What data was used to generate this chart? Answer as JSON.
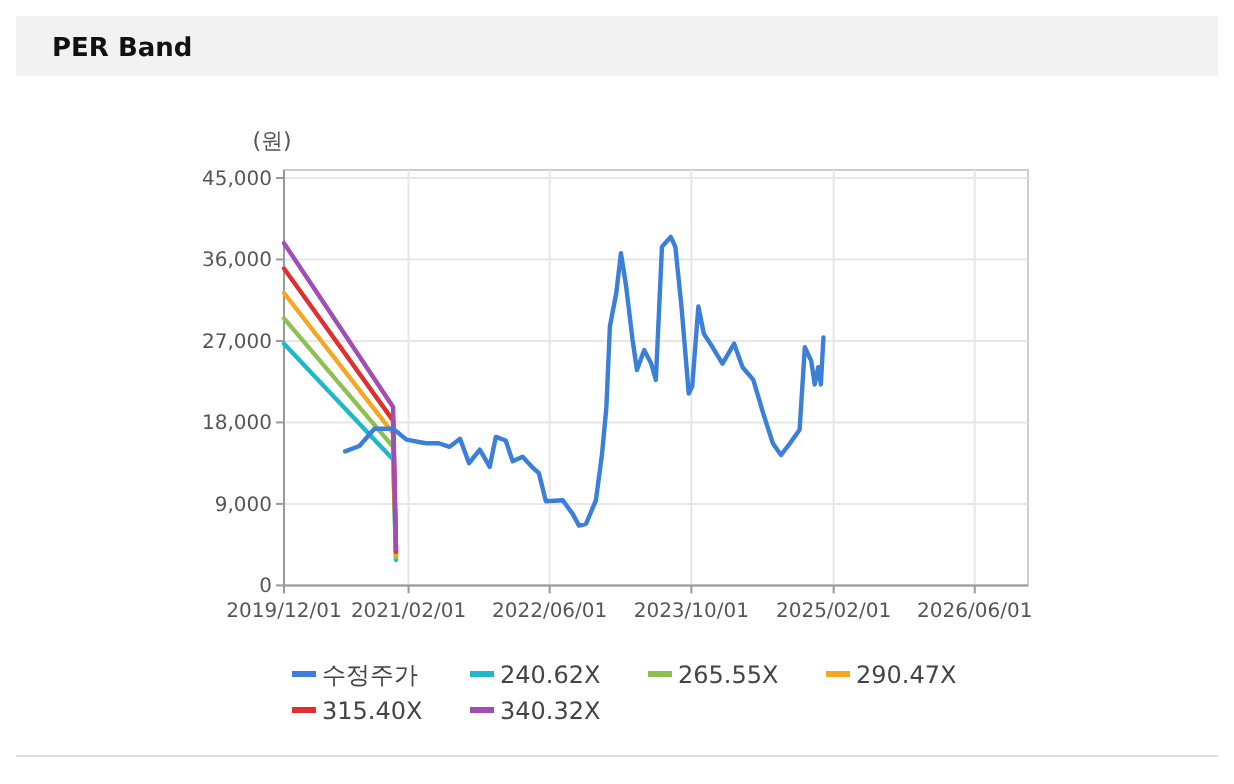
{
  "chart_data": {
    "type": "line",
    "title": "PER Band",
    "ylabel": "(원)",
    "xlim": [
      "2019-12-01",
      "2026-12-01"
    ],
    "xticks": [
      {
        "value": "2019-12-01",
        "label": "2019/12/01"
      },
      {
        "value": "2021-02-01",
        "label": "2021/02/01"
      },
      {
        "value": "2022-06-01",
        "label": "2022/06/01"
      },
      {
        "value": "2023-10-01",
        "label": "2023/10/01"
      },
      {
        "value": "2025-02-01",
        "label": "2025/02/01"
      },
      {
        "value": "2026-06-01",
        "label": "2026/06/01"
      }
    ],
    "ylim": [
      0,
      45000
    ],
    "yticks": [
      {
        "value": 0,
        "label": "0"
      },
      {
        "value": 9000,
        "label": "9,000"
      },
      {
        "value": 18000,
        "label": "18,000"
      },
      {
        "value": 27000,
        "label": "27,000"
      },
      {
        "value": 36000,
        "label": "36,000"
      },
      {
        "value": 45000,
        "label": "45,000"
      }
    ],
    "grid": true,
    "legend": "bottom",
    "marker": "none",
    "line_style": "solid",
    "series": [
      {
        "name": "수정주가",
        "color": "#3a7fd9",
        "x": [
          "2020-06-28",
          "2020-08-16",
          "2020-10-07",
          "2020-12-10",
          "2021-01-25",
          "2021-04-01",
          "2021-05-16",
          "2021-06-22",
          "2021-07-28",
          "2021-08-28",
          "2021-10-04",
          "2021-11-07",
          "2021-11-28",
          "2022-01-01",
          "2022-01-25",
          "2022-02-28",
          "2022-04-01",
          "2022-04-25",
          "2022-05-19",
          "2022-07-16",
          "2022-08-19",
          "2022-09-10",
          "2022-10-04",
          "2022-11-07",
          "2022-11-28",
          "2022-12-13",
          "2022-12-25",
          "2023-01-16",
          "2023-02-01",
          "2023-02-19",
          "2023-03-13",
          "2023-03-28",
          "2023-04-22",
          "2023-05-16",
          "2023-06-01",
          "2023-06-22",
          "2023-07-22",
          "2023-08-07",
          "2023-08-28",
          "2023-09-22",
          "2023-10-04",
          "2023-10-25",
          "2023-11-13",
          "2023-12-13",
          "2024-01-16",
          "2024-02-25",
          "2024-03-25",
          "2024-05-01",
          "2024-06-04",
          "2024-07-07",
          "2024-08-04",
          "2024-09-04",
          "2024-10-07",
          "2024-10-25",
          "2024-11-16",
          "2024-11-28",
          "2024-12-10",
          "2024-12-19",
          "2024-12-28"
        ],
        "values": [
          14800,
          15400,
          17300,
          17300,
          16100,
          15700,
          15700,
          15300,
          16200,
          13500,
          15000,
          13100,
          16400,
          16000,
          13700,
          14200,
          13100,
          12400,
          9300,
          9400,
          7900,
          6600,
          6800,
          9400,
          14500,
          19700,
          28600,
          32300,
          36700,
          33000,
          27100,
          23800,
          26000,
          24500,
          22700,
          37400,
          38500,
          37400,
          30800,
          21200,
          22000,
          30800,
          27800,
          26300,
          24500,
          26700,
          24100,
          22700,
          19000,
          15700,
          14400,
          15700,
          17200,
          26300,
          24800,
          22200,
          24100,
          22200,
          27400
        ]
      },
      {
        "name": "240.62X",
        "color": "#1fb8c9",
        "x": [
          "2019-12-01",
          "2020-12-10",
          "2020-12-20"
        ],
        "values": [
          26700,
          13900,
          2800
        ]
      },
      {
        "name": "265.55X",
        "color": "#8cc152",
        "x": [
          "2019-12-01",
          "2020-12-10",
          "2020-12-20"
        ],
        "values": [
          29500,
          15300,
          3100
        ]
      },
      {
        "name": "290.47X",
        "color": "#f5a623",
        "x": [
          "2019-12-01",
          "2020-12-10",
          "2020-12-20"
        ],
        "values": [
          32300,
          16800,
          3400
        ]
      },
      {
        "name": "315.40X",
        "color": "#e02f2f",
        "x": [
          "2019-12-01",
          "2020-12-10",
          "2020-12-20"
        ],
        "values": [
          35000,
          18200,
          3700
        ]
      },
      {
        "name": "340.32X",
        "color": "#a04db5",
        "x": [
          "2019-12-01",
          "2020-12-10",
          "2020-12-20"
        ],
        "values": [
          37800,
          19700,
          4000
        ]
      }
    ]
  }
}
